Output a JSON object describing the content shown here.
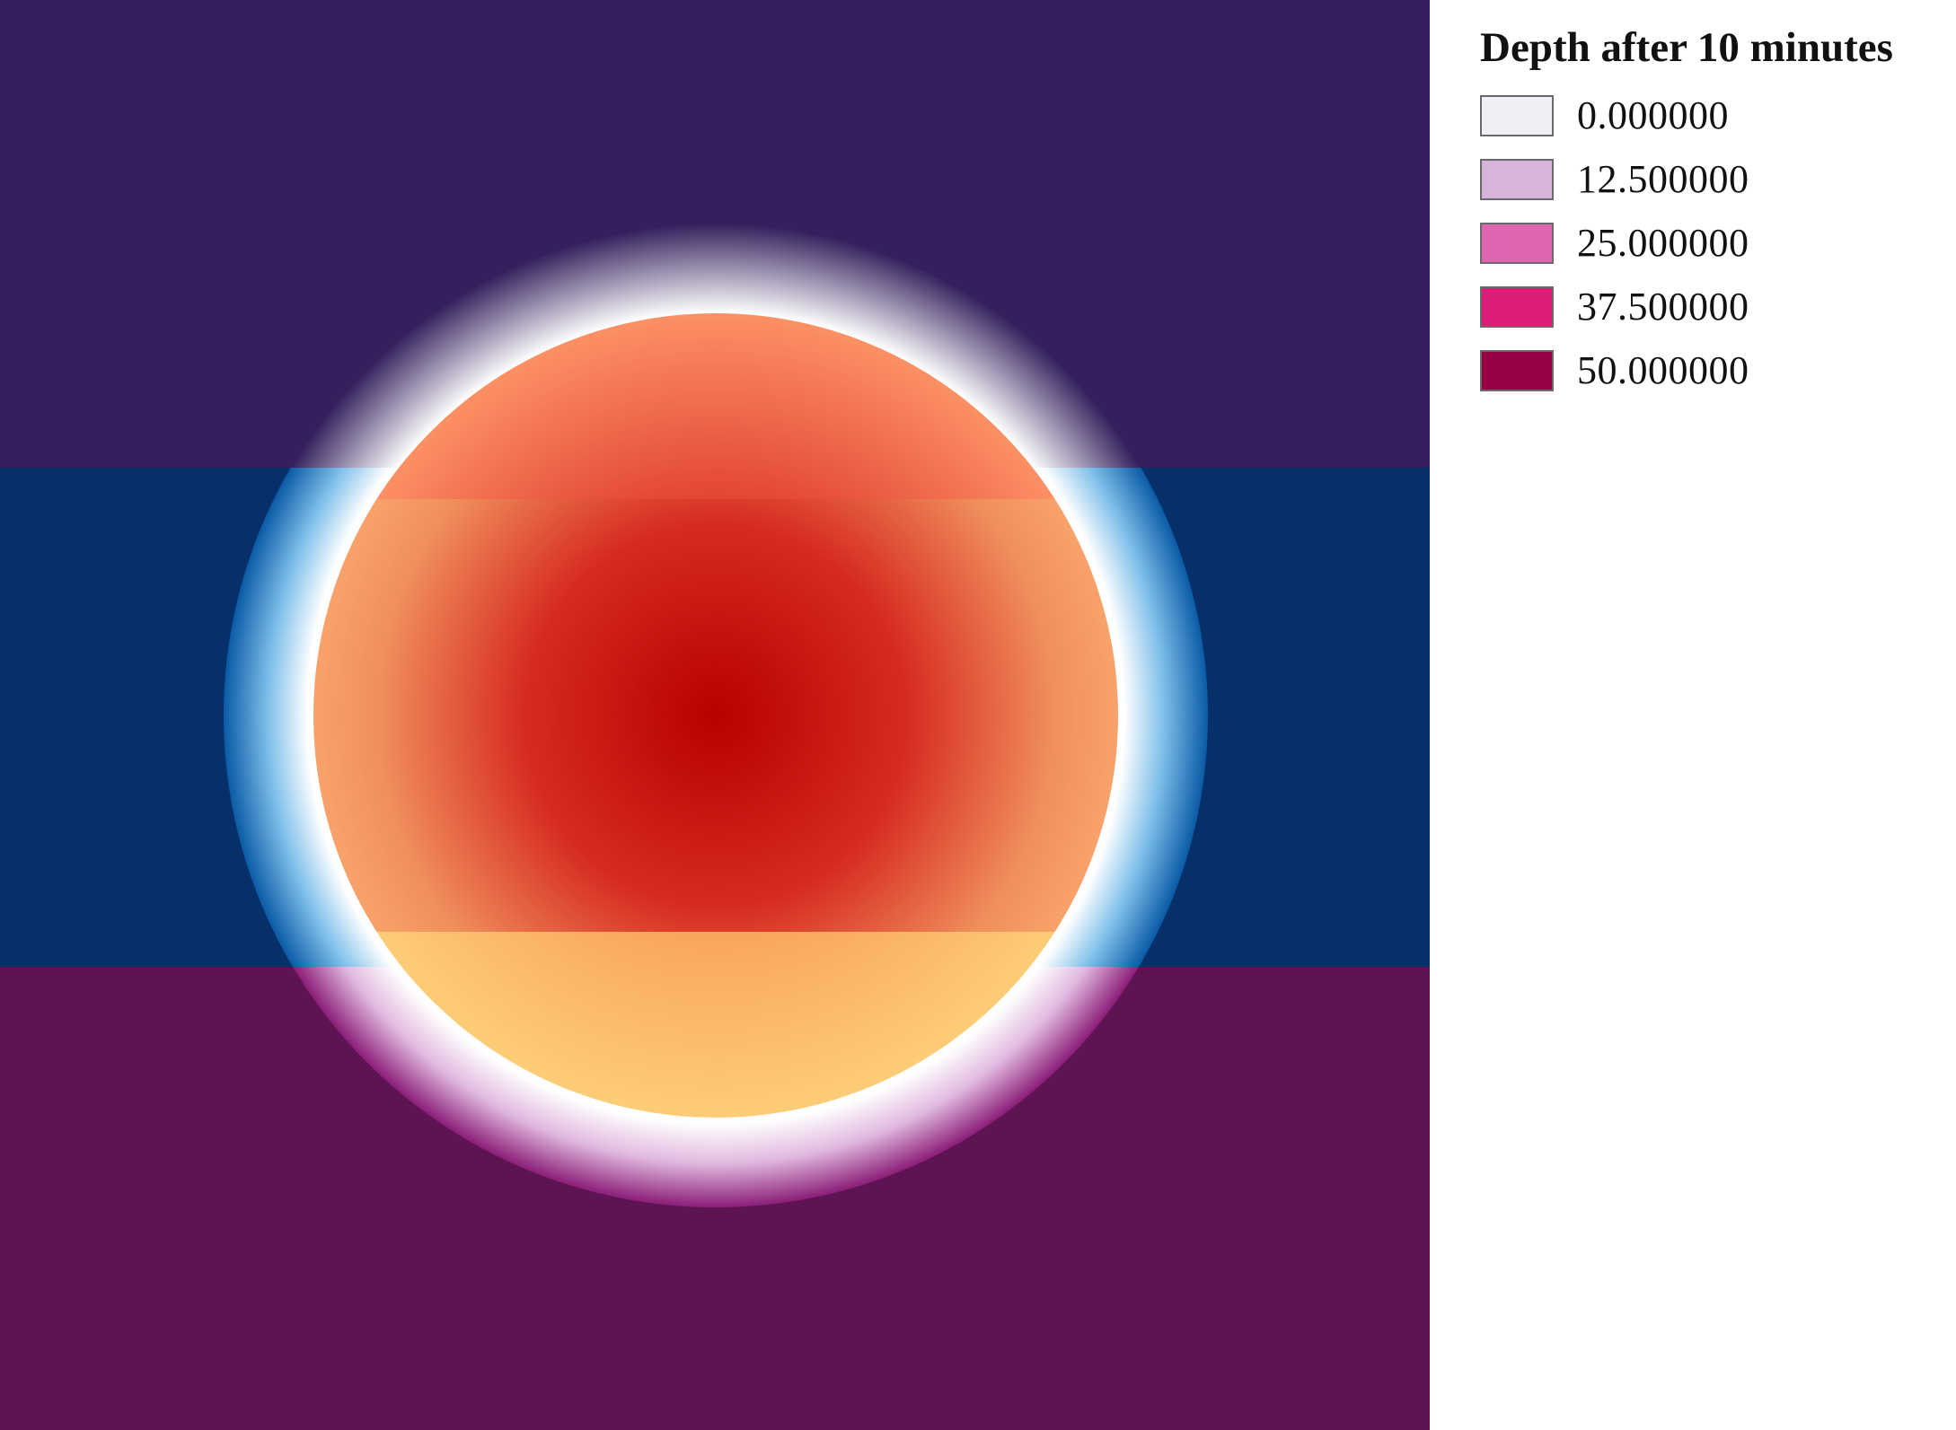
{
  "map": {
    "background_bands": [
      {
        "name": "top band",
        "color": "#35205d"
      },
      {
        "name": "middle band",
        "color": "#072f69"
      },
      {
        "name": "bottom band",
        "color": "#5e1452"
      }
    ],
    "halo": {
      "inner_color": "#ffffff",
      "top_edge_color": "#35205d",
      "middle_edge_color": "#0a5aa6",
      "bottom_edge_color": "#8b1e78"
    },
    "inner_circle": {
      "top_colors": [
        "#b8000a",
        "#ff986a"
      ],
      "middle_colors": [
        "#b80000",
        "#d62a20",
        "#f08f5c",
        "#fba870"
      ],
      "bottom_colors": [
        "#d9741f",
        "#f9a95d",
        "#ffd07a"
      ]
    }
  },
  "legend": {
    "title": "Depth after 10 minutes",
    "items": [
      {
        "label": "0.000000",
        "color": "#f1eef6"
      },
      {
        "label": "12.500000",
        "color": "#d7b5d8"
      },
      {
        "label": "25.000000",
        "color": "#df65b0"
      },
      {
        "label": "37.500000",
        "color": "#dd1c77"
      },
      {
        "label": "50.000000",
        "color": "#980043"
      }
    ]
  }
}
